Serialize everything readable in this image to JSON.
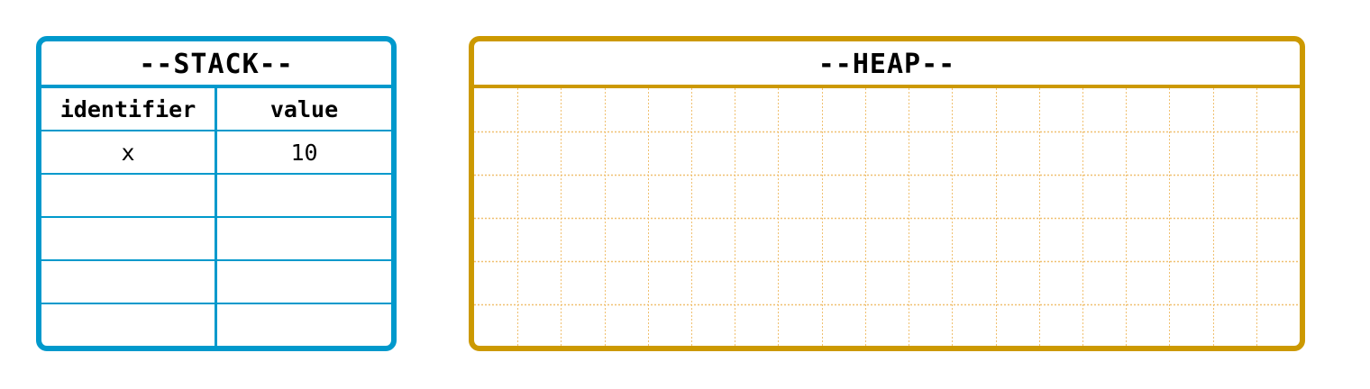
{
  "stack": {
    "title": "--STACK--",
    "headers": {
      "identifier": "identifier",
      "value": "value"
    },
    "rows": [
      {
        "identifier": "x",
        "value": "10"
      },
      {
        "identifier": "",
        "value": ""
      },
      {
        "identifier": "",
        "value": ""
      },
      {
        "identifier": "",
        "value": ""
      },
      {
        "identifier": "",
        "value": ""
      }
    ]
  },
  "heap": {
    "title": "--HEAP--",
    "grid_columns": 19,
    "grid_rows": 6
  },
  "colors": {
    "stack_border": "#0099cc",
    "heap_border": "#cc9900",
    "heap_grid": "#f0c070"
  }
}
